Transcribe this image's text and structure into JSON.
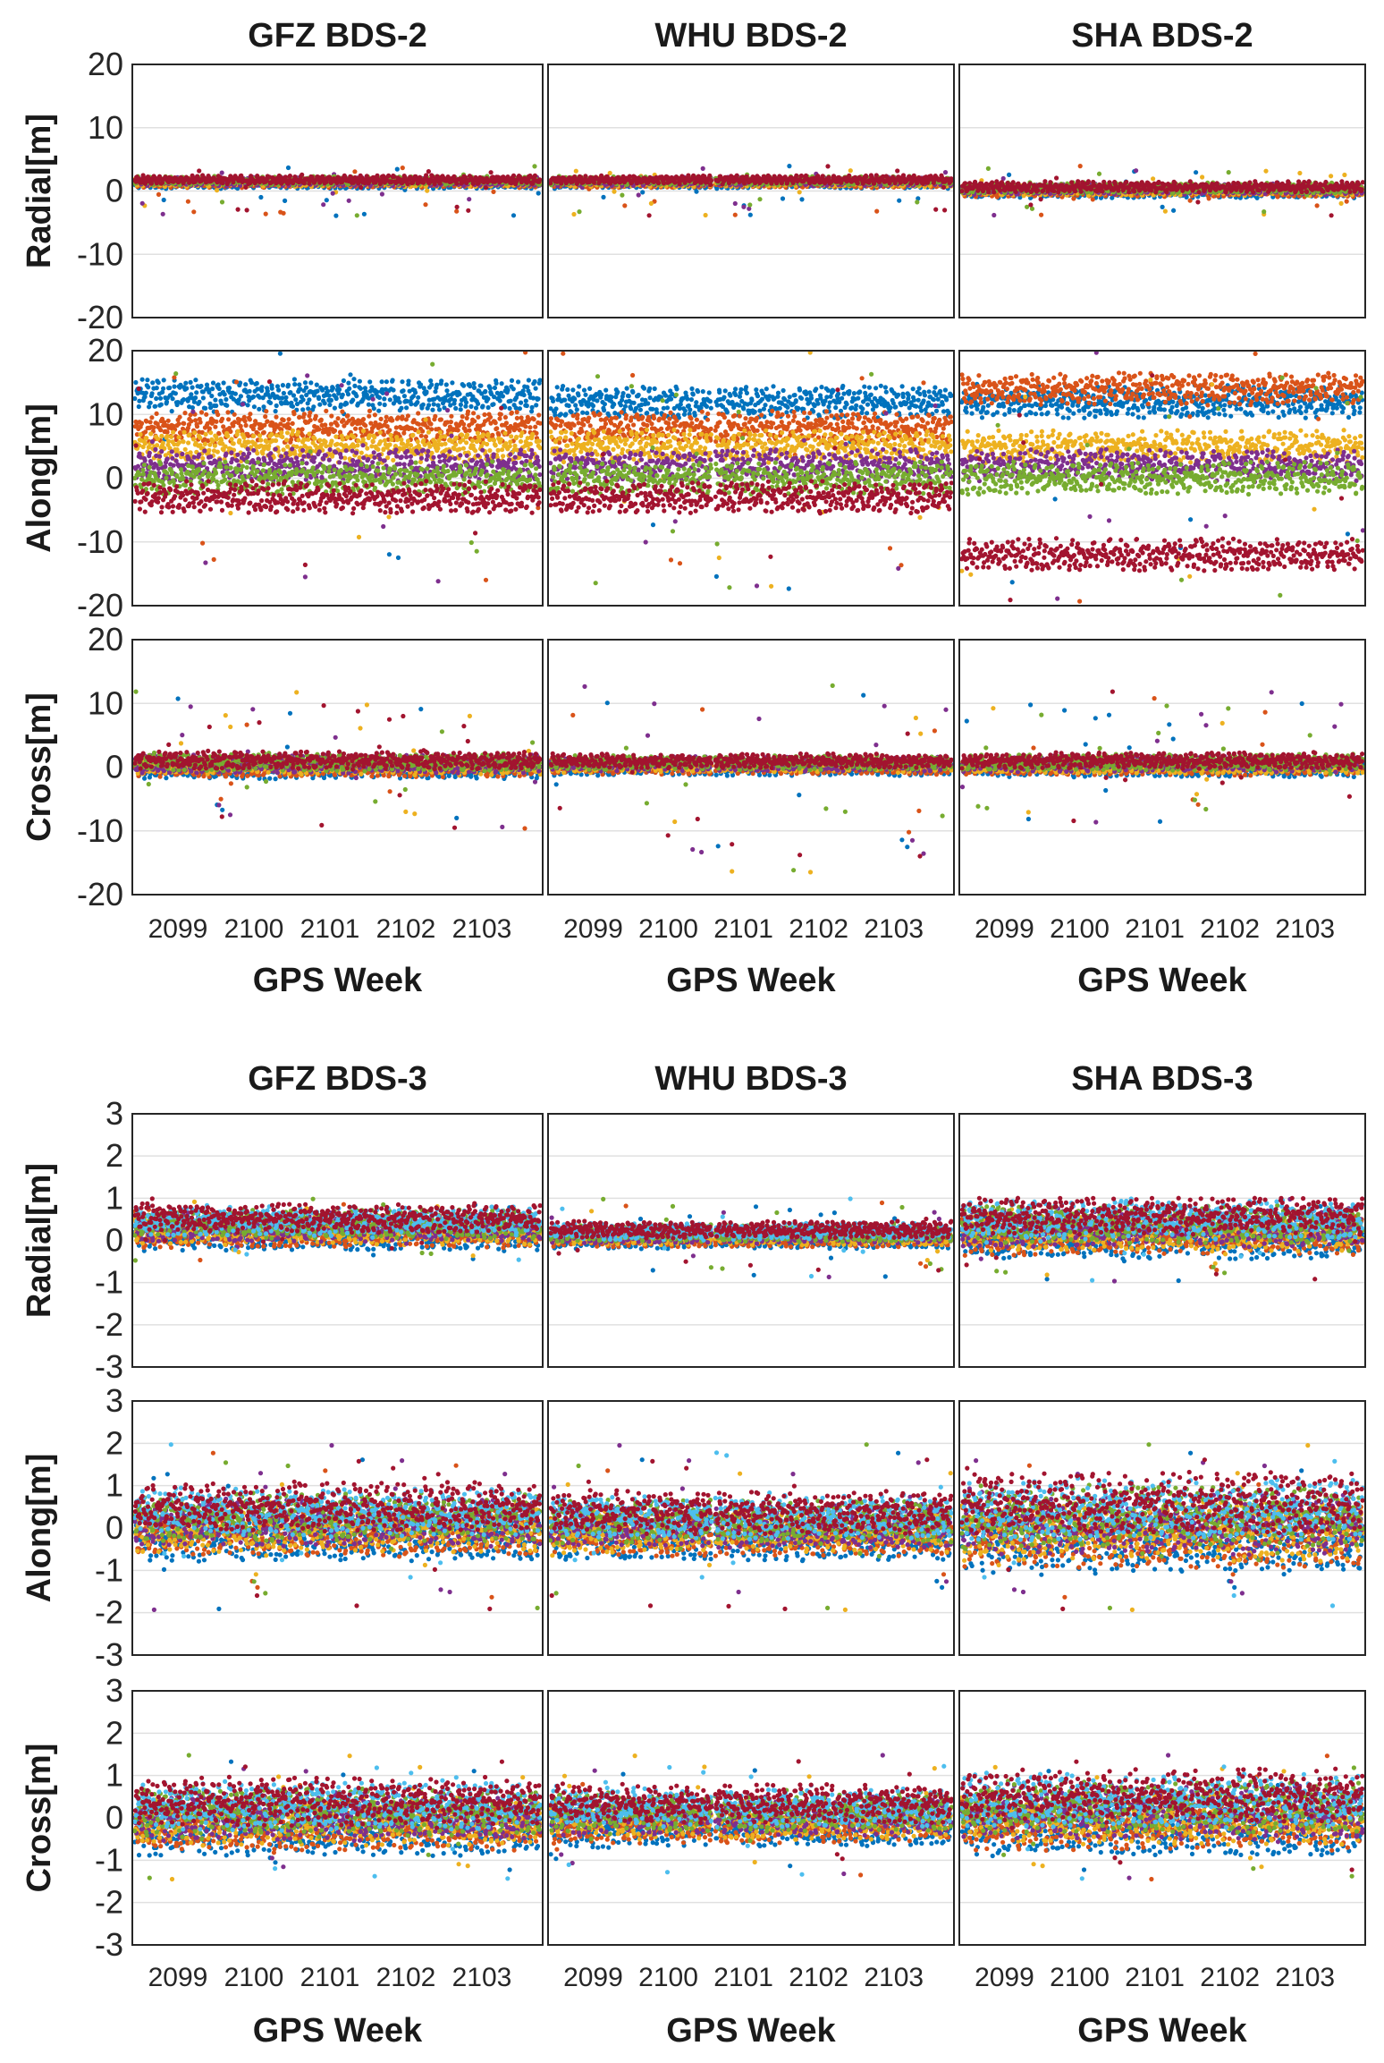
{
  "chart_data": [
    {
      "type": "scatter",
      "group": "BDS-2",
      "panel_titles": [
        "GFZ BDS-2",
        "WHU BDS-2",
        "SHA BDS-2"
      ],
      "row_labels": [
        "Radial[m]",
        "Along[m]",
        "Cross[m]"
      ],
      "xlabel": "GPS Week",
      "xticks": [
        "2099",
        "2100",
        "2101",
        "2102",
        "2103"
      ],
      "xlim": [
        2098.4,
        2103.8
      ],
      "ylim": [
        -20,
        20
      ],
      "yticks": [
        "20",
        "10",
        "0",
        "-10",
        "-20"
      ],
      "grid": true,
      "data_gap_week": 2100.6,
      "series_colors": [
        "#0072bd",
        "#d95319",
        "#edb120",
        "#7e2f8e",
        "#77ac30",
        "#a2142f"
      ],
      "rows": [
        {
          "component": "Radial",
          "panels": [
            {
              "center": 1.5,
              "spread": 1.2,
              "outlier_min": -4,
              "outlier_max": 4
            },
            {
              "center": 1.5,
              "spread": 1.2,
              "outlier_min": -4,
              "outlier_max": 4
            },
            {
              "center": 0.3,
              "spread": 1.5,
              "outlier_min": -4,
              "outlier_max": 4
            }
          ]
        },
        {
          "component": "Along",
          "panels": [
            {
              "levels": [
                13,
                8,
                5,
                2,
                0,
                -3
              ],
              "outlier_min": -17,
              "outlier_max": 20
            },
            {
              "levels": [
                12,
                8,
                5,
                2,
                0,
                -3
              ],
              "outlier_min": -18,
              "outlier_max": 20
            },
            {
              "levels": [
                12,
                14,
                5,
                2,
                0,
                -12
              ],
              "outlier_min": -20,
              "outlier_max": 20
            }
          ]
        },
        {
          "component": "Cross",
          "panels": [
            {
              "center": 0.5,
              "spread": 2.5,
              "outlier_min": -10,
              "outlier_max": 12
            },
            {
              "center": 0.5,
              "spread": 2.0,
              "outlier_min": -17,
              "outlier_max": 13
            },
            {
              "center": 0.5,
              "spread": 2.2,
              "outlier_min": -9,
              "outlier_max": 12
            }
          ]
        }
      ]
    },
    {
      "type": "scatter",
      "group": "BDS-3",
      "panel_titles": [
        "GFZ BDS-3",
        "WHU BDS-3",
        "SHA BDS-3"
      ],
      "row_labels": [
        "Radial[m]",
        "Along[m]",
        "Cross[m]"
      ],
      "xlabel": "GPS Week",
      "xticks": [
        "2099",
        "2100",
        "2101",
        "2102",
        "2103"
      ],
      "xlim": [
        2098.4,
        2103.8
      ],
      "ylim": [
        -3,
        3
      ],
      "yticks": [
        "3",
        "2",
        "1",
        "0",
        "-1",
        "-2",
        "-3"
      ],
      "grid": true,
      "data_gap_week": 2100.6,
      "series_colors": [
        "#0072bd",
        "#d95319",
        "#edb120",
        "#7e2f8e",
        "#77ac30",
        "#4dbeee",
        "#a2142f"
      ],
      "rows": [
        {
          "component": "Radial",
          "panels": [
            {
              "center": 0.35,
              "spread": 0.6,
              "outlier_min": -0.5,
              "outlier_max": 1.0
            },
            {
              "center": 0.15,
              "spread": 0.35,
              "outlier_min": -0.9,
              "outlier_max": 1.0
            },
            {
              "center": 0.35,
              "spread": 0.8,
              "outlier_min": -1.0,
              "outlier_max": 1.0
            }
          ]
        },
        {
          "component": "Along",
          "panels": [
            {
              "center": 0.2,
              "spread": 1.0,
              "outlier_min": -2.0,
              "outlier_max": 2.0
            },
            {
              "center": 0.1,
              "spread": 0.9,
              "outlier_min": -2.0,
              "outlier_max": 2.0
            },
            {
              "center": 0.2,
              "spread": 1.3,
              "outlier_min": -2.0,
              "outlier_max": 2.0
            }
          ]
        },
        {
          "component": "Cross",
          "panels": [
            {
              "center": 0.1,
              "spread": 1.0,
              "outlier_min": -1.5,
              "outlier_max": 1.5
            },
            {
              "center": 0.1,
              "spread": 0.8,
              "outlier_min": -1.4,
              "outlier_max": 1.5
            },
            {
              "center": 0.2,
              "spread": 1.1,
              "outlier_min": -1.5,
              "outlier_max": 1.5
            }
          ]
        }
      ]
    }
  ]
}
